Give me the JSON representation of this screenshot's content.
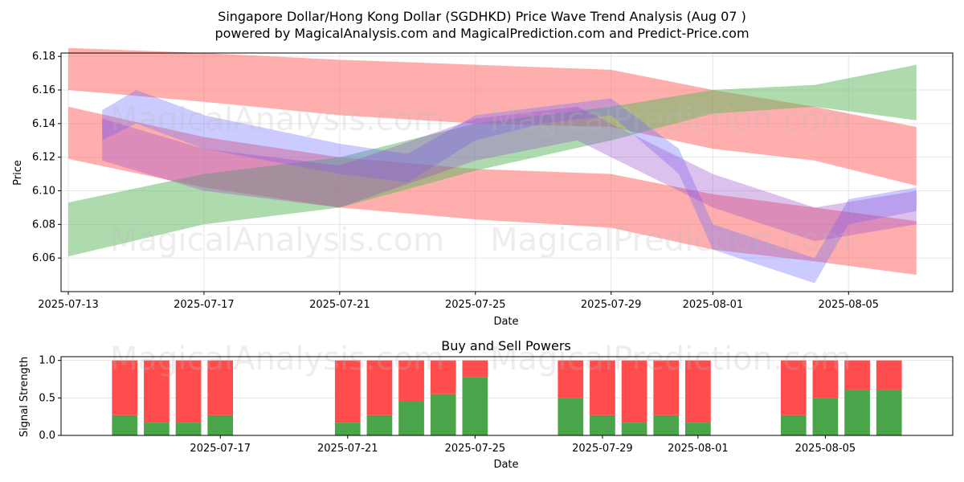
{
  "header": {
    "title": "Singapore Dollar/Hong Kong Dollar (SGDHKD) Price Wave Trend Analysis (Aug 07 )",
    "subtitle": "powered by MagicalAnalysis.com and MagicalPrediction.com and Predict-Price.com"
  },
  "watermark": {
    "left": "MagicalAnalysis.com",
    "right": "MagicalPrediction.com"
  },
  "colors": {
    "red_band": "#ff6b6b",
    "green_band": "#5cb85c",
    "blue_band": "#6b6bff",
    "purple_band": "#9b4dca",
    "buy": "#4aa54a",
    "sell": "#ff4c4c"
  },
  "chart_data": [
    {
      "type": "area",
      "title": "",
      "xlabel": "Date",
      "ylabel": "Price",
      "xlim": [
        "2025-07-13",
        "2025-08-08"
      ],
      "ylim": [
        6.04,
        6.182
      ],
      "x_ticks": [
        "2025-07-13",
        "2025-07-17",
        "2025-07-21",
        "2025-07-25",
        "2025-07-29",
        "2025-08-01",
        "2025-08-05"
      ],
      "y_ticks": [
        6.06,
        6.08,
        6.1,
        6.12,
        6.14,
        6.16,
        6.18
      ],
      "grid": true,
      "bands": [
        {
          "color": "red",
          "dates": [
            "2025-07-13",
            "2025-07-17",
            "2025-07-21",
            "2025-07-25",
            "2025-07-29",
            "2025-08-01",
            "2025-08-04",
            "2025-08-07"
          ],
          "low": [
            6.16,
            6.153,
            6.145,
            6.14,
            6.138,
            6.125,
            6.118,
            6.103
          ],
          "high": [
            6.185,
            6.182,
            6.178,
            6.175,
            6.172,
            6.16,
            6.15,
            6.138
          ]
        },
        {
          "color": "red",
          "dates": [
            "2025-07-13",
            "2025-07-17",
            "2025-07-21",
            "2025-07-25",
            "2025-07-29",
            "2025-08-01",
            "2025-08-04",
            "2025-08-07"
          ],
          "low": [
            6.119,
            6.102,
            6.09,
            6.083,
            6.078,
            6.065,
            6.058,
            6.05
          ],
          "high": [
            6.15,
            6.132,
            6.12,
            6.113,
            6.11,
            6.098,
            6.09,
            6.082
          ]
        },
        {
          "color": "green",
          "dates": [
            "2025-07-13",
            "2025-07-17",
            "2025-07-21",
            "2025-07-25",
            "2025-07-29",
            "2025-08-01",
            "2025-08-04",
            "2025-08-07"
          ],
          "low": [
            6.061,
            6.08,
            6.09,
            6.112,
            6.13,
            6.146,
            6.15,
            6.142
          ],
          "high": [
            6.093,
            6.11,
            6.12,
            6.14,
            6.15,
            6.16,
            6.163,
            6.175
          ]
        },
        {
          "color": "blue",
          "dates": [
            "2025-07-14",
            "2025-07-15",
            "2025-07-17",
            "2025-07-21",
            "2025-07-23",
            "2025-07-25",
            "2025-07-27",
            "2025-07-29",
            "2025-07-31",
            "2025-08-01",
            "2025-08-04",
            "2025-08-05",
            "2025-08-07"
          ],
          "low": [
            6.13,
            6.14,
            6.125,
            6.11,
            6.105,
            6.13,
            6.14,
            6.145,
            6.11,
            6.065,
            6.045,
            6.08,
            6.088
          ],
          "high": [
            6.148,
            6.16,
            6.145,
            6.128,
            6.122,
            6.145,
            6.15,
            6.155,
            6.125,
            6.08,
            6.06,
            6.095,
            6.102
          ]
        },
        {
          "color": "purple",
          "dates": [
            "2025-07-14",
            "2025-07-17",
            "2025-07-21",
            "2025-07-25",
            "2025-07-28",
            "2025-08-01",
            "2025-08-04",
            "2025-08-07"
          ],
          "low": [
            6.118,
            6.1,
            6.09,
            6.118,
            6.13,
            6.09,
            6.07,
            6.08
          ],
          "high": [
            6.143,
            6.125,
            6.115,
            6.143,
            6.15,
            6.11,
            6.09,
            6.1
          ]
        }
      ]
    },
    {
      "type": "bar",
      "title": "Buy and Sell Powers",
      "xlabel": "Date",
      "ylabel": "Signal Strength",
      "ylim": [
        0,
        1.05
      ],
      "y_ticks": [
        0.0,
        0.5,
        1.0
      ],
      "x_ticks": [
        "2025-07-17",
        "2025-07-21",
        "2025-07-25",
        "2025-07-29",
        "2025-08-01",
        "2025-08-05"
      ],
      "grid": true,
      "dates": [
        "2025-07-14",
        "2025-07-15",
        "2025-07-16",
        "2025-07-17",
        "2025-07-21",
        "2025-07-22",
        "2025-07-23",
        "2025-07-24",
        "2025-07-25",
        "2025-07-28",
        "2025-07-29",
        "2025-07-30",
        "2025-07-31",
        "2025-08-01",
        "2025-08-04",
        "2025-08-05",
        "2025-08-06",
        "2025-08-07"
      ],
      "series": [
        {
          "name": "Buy",
          "values": [
            0.27,
            0.17,
            0.17,
            0.27,
            0.17,
            0.27,
            0.45,
            0.55,
            0.78,
            0.5,
            0.27,
            0.17,
            0.27,
            0.17,
            0.27,
            0.5,
            0.61,
            0.61
          ]
        },
        {
          "name": "Sell",
          "values": [
            0.73,
            0.83,
            0.83,
            0.73,
            0.83,
            0.73,
            0.55,
            0.45,
            0.22,
            0.5,
            0.73,
            0.83,
            0.73,
            0.83,
            0.73,
            0.5,
            0.39,
            0.39
          ]
        }
      ]
    }
  ]
}
